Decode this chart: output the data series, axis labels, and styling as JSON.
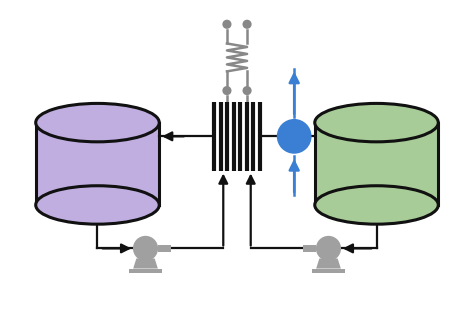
{
  "bg_color": "#ffffff",
  "left_tank_color": "#c0aee0",
  "left_tank_edge": "#111111",
  "right_tank_color": "#a8cc98",
  "right_tank_edge": "#111111",
  "blue_node_color": "#3a7fd4",
  "blue_arrow_color": "#3a7fd4",
  "resistor_color": "#888888",
  "pump_color": "#a0a0a0",
  "membrane_color": "#111111",
  "flow_arrow_color": "#111111",
  "fig_width": 4.74,
  "fig_height": 3.23,
  "dpi": 100
}
